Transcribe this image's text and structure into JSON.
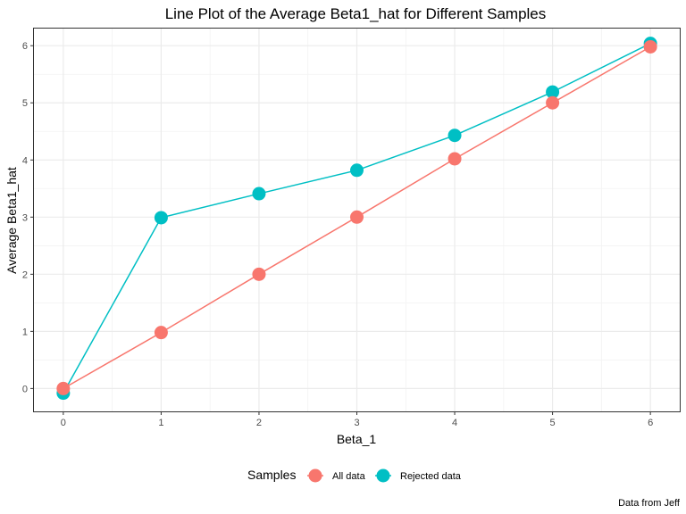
{
  "chart_data": {
    "type": "line",
    "title": "Line Plot of the Average Beta1_hat for Different Samples",
    "xlabel": "Beta_1",
    "ylabel": "Average Beta1_hat",
    "x": [
      0,
      1,
      2,
      3,
      4,
      5,
      6
    ],
    "xlim": [
      -0.3,
      6.3
    ],
    "ylim": [
      -0.4,
      6.3
    ],
    "xticks": [
      "0",
      "1",
      "2",
      "3",
      "4",
      "5",
      "6"
    ],
    "yticks": [
      "0",
      "1",
      "2",
      "3",
      "4",
      "5",
      "6"
    ],
    "grid": true,
    "legend": {
      "title": "Samples",
      "position": "bottom"
    },
    "series": [
      {
        "name": "All data",
        "color": "#F8766D",
        "values": [
          0.0,
          0.98,
          2.0,
          3.0,
          4.02,
          5.0,
          5.98
        ]
      },
      {
        "name": "Rejected data",
        "color": "#00BFC4",
        "values": [
          -0.08,
          2.99,
          3.41,
          3.82,
          4.43,
          5.19,
          6.04
        ]
      }
    ],
    "caption": "Data from Jeff"
  }
}
